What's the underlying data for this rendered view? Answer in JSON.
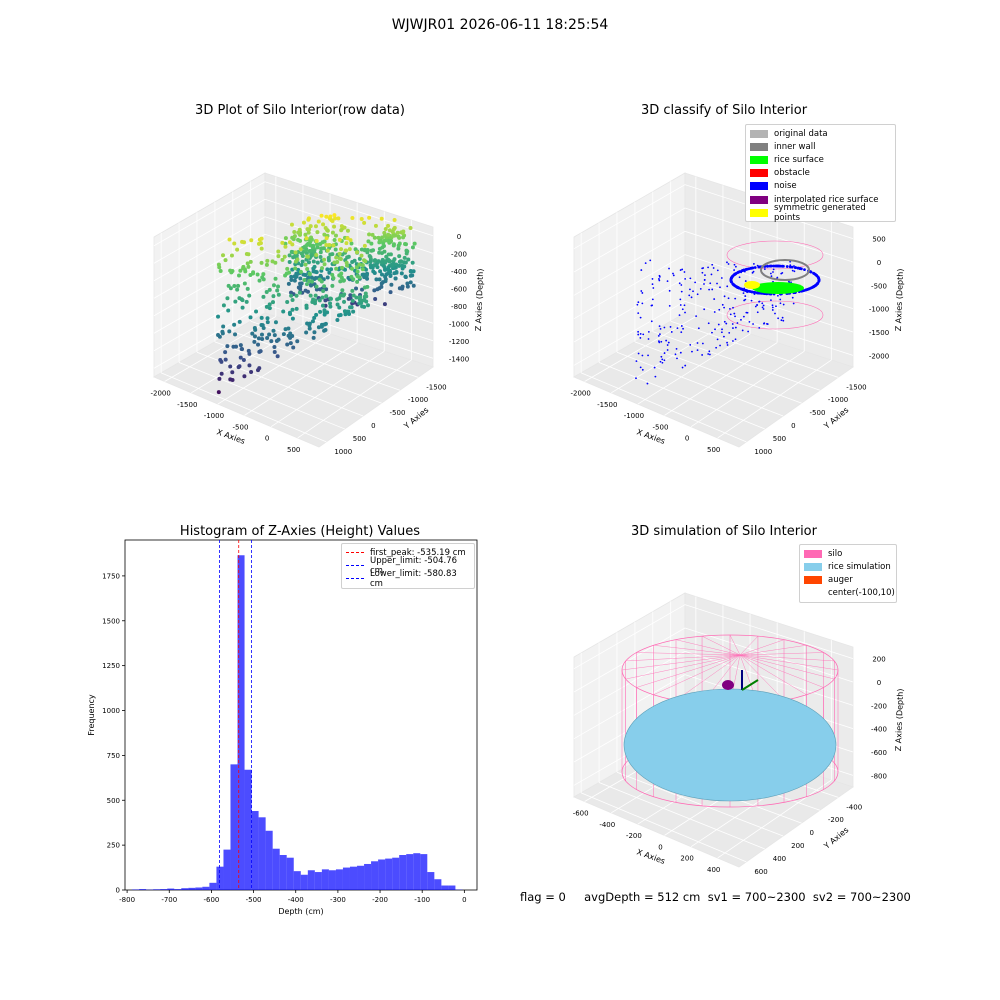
{
  "figure": {
    "title": "WJWJR01 2026-06-11 18:25:54"
  },
  "status": {
    "text": "flag = 0     avgDepth = 512 cm  sv1 = 700~2300  sv2 = 700~2300"
  },
  "chart_data": [
    {
      "type": "scatter3d",
      "title": "3D Plot of Silo Interior(row data)",
      "xlabel": "X Axies",
      "ylabel": "Y Axies",
      "zlabel": "Z Axies (Depth)",
      "x_ticks": [
        "-2000",
        "-1500",
        "-1000",
        "-500",
        "0",
        "500"
      ],
      "y_ticks": [
        "-1500",
        "-1000",
        "-500",
        "0",
        "500",
        "1000"
      ],
      "z_ticks": [
        "0",
        "-200",
        "-400",
        "-600",
        "-800",
        "-1000",
        "-1200",
        "-1400"
      ],
      "colormap": "viridis"
    },
    {
      "type": "scatter3d",
      "title": "3D classify of Silo Interior",
      "xlabel": "X Axies",
      "ylabel": "Y Axies",
      "zlabel": "Z Axies (Depth)",
      "x_ticks": [
        "-2000",
        "-1500",
        "-1000",
        "-500",
        "0",
        "500"
      ],
      "y_ticks": [
        "-1500",
        "-1000",
        "-500",
        "0",
        "500",
        "1000"
      ],
      "z_ticks": [
        "500",
        "0",
        "-500",
        "-1000",
        "-1500",
        "-2000"
      ],
      "legend": [
        {
          "label": "original data",
          "color": "#b3b3b3"
        },
        {
          "label": "inner wall",
          "color": "#808080"
        },
        {
          "label": "rice surface",
          "color": "#00ff00"
        },
        {
          "label": "obstacle",
          "color": "#ff0000"
        },
        {
          "label": "noise",
          "color": "#0000ff"
        },
        {
          "label": "interpolated rice surface",
          "color": "#800080"
        },
        {
          "label": "symmetric generated points",
          "color": "#ffff00"
        }
      ]
    },
    {
      "type": "bar",
      "title": "Histogram of Z-Axies (Height) Values",
      "xlabel": "Depth (cm)",
      "ylabel": "Frequency",
      "xlim": [
        -805,
        30
      ],
      "ylim": [
        0,
        1950
      ],
      "x_ticks": [
        -800,
        -700,
        -600,
        -500,
        -400,
        -300,
        -200,
        -100,
        0
      ],
      "y_ticks": [
        0,
        250,
        500,
        750,
        1000,
        1250,
        1500,
        1750
      ],
      "bar_color": "#0000ff",
      "bin_edges": [
        -788.2,
        -771.5,
        -754.9,
        -738.2,
        -721.5,
        -704.8,
        -688.2,
        -671.5,
        -654.8,
        -638.1,
        -621.5,
        -604.8,
        -588.1,
        -571.4,
        -554.8,
        -538.1,
        -521.4,
        -504.7,
        -488.1,
        -471.4,
        -454.7,
        -438.0,
        -421.4,
        -404.7,
        -388.0,
        -371.3,
        -354.7,
        -338.0,
        -321.3,
        -304.6,
        -288.0,
        -271.3,
        -254.6,
        -237.9,
        -221.3,
        -204.6,
        -187.9,
        -171.2,
        -154.6,
        -137.9,
        -121.2,
        -104.5,
        -87.9,
        -71.2,
        -54.5,
        -37.8,
        -21.2,
        -4.5
      ],
      "values": [
        3,
        5,
        2,
        4,
        5,
        8,
        5,
        10,
        12,
        14,
        18,
        40,
        130,
        225,
        700,
        1865,
        670,
        440,
        405,
        330,
        230,
        195,
        180,
        105,
        85,
        110,
        100,
        115,
        110,
        115,
        125,
        130,
        135,
        145,
        160,
        170,
        175,
        180,
        195,
        200,
        205,
        200,
        100,
        60,
        25,
        25,
        2
      ],
      "vlines": [
        {
          "label": "first_peak: -535.19 cm",
          "x": -535.19,
          "color": "#ff0000"
        },
        {
          "label": "Upper_limit: -504.76 cm",
          "x": -504.76,
          "color": "#0000ff"
        },
        {
          "label": "Lower_limit: -580.83 cm",
          "x": -580.83,
          "color": "#0000ff"
        }
      ]
    },
    {
      "type": "surface3d",
      "title": "3D simulation of Silo Interior",
      "xlabel": "X Axies",
      "ylabel": "Y Axies",
      "zlabel": "Z Axies (Depth)",
      "x_ticks": [
        "-600",
        "-400",
        "-200",
        "0",
        "200",
        "400"
      ],
      "y_ticks": [
        "-400",
        "-200",
        "0",
        "200",
        "400",
        "600"
      ],
      "z_ticks": [
        "200",
        "0",
        "-200",
        "-400",
        "-600",
        "-800"
      ],
      "legend": [
        {
          "label": "silo",
          "color": "#ff69b4"
        },
        {
          "label": "rice simulation",
          "color": "#87ceeb"
        },
        {
          "label": "auger",
          "color": "#ff4500"
        },
        {
          "label": "center(-100,10)",
          "color": ""
        }
      ]
    }
  ]
}
